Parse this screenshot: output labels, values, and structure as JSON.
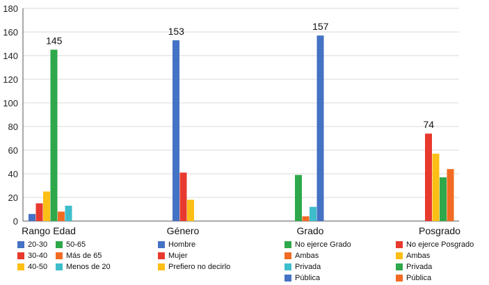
{
  "chart_data": {
    "type": "bar",
    "ylim": [
      0,
      180
    ],
    "yticks": [
      0,
      20,
      40,
      60,
      80,
      100,
      120,
      140,
      160,
      180
    ],
    "grid": true,
    "groups": [
      {
        "category": "Rango Edad",
        "bars": [
          {
            "name": "20-30",
            "value": 6,
            "color": "#4472C4"
          },
          {
            "name": "30-40",
            "value": 15,
            "color": "#E8392E"
          },
          {
            "name": "40-50",
            "value": 25,
            "color": "#FDBE15"
          },
          {
            "name": "50-65",
            "value": 145,
            "color": "#2EA84A",
            "label": "145"
          },
          {
            "name": "Más de 65",
            "value": 8,
            "color": "#F26B22"
          },
          {
            "name": "Menos de 20",
            "value": 13,
            "color": "#3EBDCB"
          }
        ]
      },
      {
        "category": "Género",
        "bars": [
          {
            "name": "Hombre",
            "value": 153,
            "color": "#4472C4",
            "label": "153"
          },
          {
            "name": "Mujer",
            "value": 41,
            "color": "#E8392E"
          },
          {
            "name": "Prefiero no decirlo",
            "value": 18,
            "color": "#FDBE15"
          }
        ]
      },
      {
        "category": "Grado",
        "bars": [
          {
            "name": "No ejerce Grado",
            "value": 39,
            "color": "#2EA84A"
          },
          {
            "name": "Ambas",
            "value": 4,
            "color": "#F26B22"
          },
          {
            "name": "Privada",
            "value": 12,
            "color": "#3EBDCB"
          },
          {
            "name": "Pública",
            "value": 157,
            "color": "#4472C4",
            "label": "157"
          }
        ]
      },
      {
        "category": "Posgrado",
        "bars": [
          {
            "name": "No ejerce Posgrado",
            "value": 74,
            "color": "#E8392E",
            "label": "74"
          },
          {
            "name": "Ambas",
            "value": 57,
            "color": "#FDBE15"
          },
          {
            "name": "Privada",
            "value": 37,
            "color": "#2EA84A"
          },
          {
            "name": "Pública",
            "value": 44,
            "color": "#F26B22"
          }
        ]
      }
    ],
    "legend": {
      "placement": "bottom",
      "columns": [
        [
          {
            "name": "20-30",
            "color": "#4472C4"
          },
          {
            "name": "30-40",
            "color": "#E8392E"
          },
          {
            "name": "40-50",
            "color": "#FDBE15"
          }
        ],
        [
          {
            "name": "50-65",
            "color": "#2EA84A"
          },
          {
            "name": "Más de 65",
            "color": "#F26B22"
          },
          {
            "name": "Menos de 20",
            "color": "#3EBDCB"
          }
        ],
        [
          {
            "name": "Hombre",
            "color": "#4472C4"
          },
          {
            "name": "Mujer",
            "color": "#E8392E"
          },
          {
            "name": "Prefiero no decirlo",
            "color": "#FDBE15"
          }
        ],
        [
          {
            "name": "No ejerce Grado",
            "color": "#2EA84A"
          },
          {
            "name": "Ambas",
            "color": "#F26B22"
          },
          {
            "name": "Privada",
            "color": "#3EBDCB"
          },
          {
            "name": "Pública",
            "color": "#4472C4"
          }
        ],
        [
          {
            "name": "No ejerce Posgrado",
            "color": "#E8392E"
          },
          {
            "name": "Ambas",
            "color": "#FDBE15"
          },
          {
            "name": "Privada",
            "color": "#2EA84A"
          },
          {
            "name": "Pública",
            "color": "#F26B22"
          }
        ]
      ]
    }
  }
}
